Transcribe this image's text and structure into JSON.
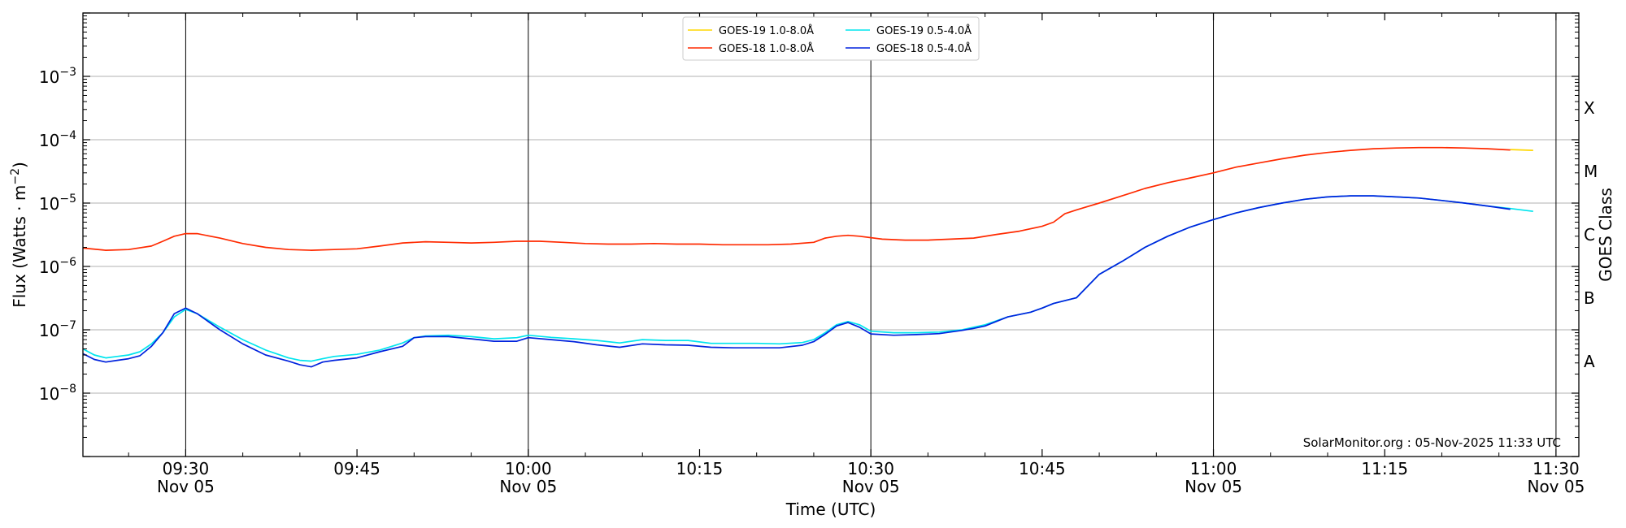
{
  "chart_data": {
    "type": "line",
    "xlabel": "Time (UTC)",
    "ylabel": "Flux (Watts · m",
    "ylabel_superscript": "−2",
    "ylabel_close": ")",
    "y2label": "GOES Class",
    "yscale": "log",
    "ylim": [
      1e-09,
      0.01
    ],
    "xlim": [
      "09:21",
      "11:32"
    ],
    "x_ticks": [
      {
        "t": "09:30",
        "line1": "09:30",
        "line2": "Nov 05"
      },
      {
        "t": "09:45",
        "line1": "09:45",
        "line2": ""
      },
      {
        "t": "10:00",
        "line1": "10:00",
        "line2": "Nov 05"
      },
      {
        "t": "10:15",
        "line1": "10:15",
        "line2": ""
      },
      {
        "t": "10:30",
        "line1": "10:30",
        "line2": "Nov 05"
      },
      {
        "t": "10:45",
        "line1": "10:45",
        "line2": ""
      },
      {
        "t": "11:00",
        "line1": "11:00",
        "line2": "Nov 05"
      },
      {
        "t": "11:15",
        "line1": "11:15",
        "line2": ""
      },
      {
        "t": "11:30",
        "line1": "11:30",
        "line2": "Nov 05"
      }
    ],
    "y_ticks": [
      {
        "value": 1e-08,
        "base": "10",
        "exp": "−8"
      },
      {
        "value": 1e-07,
        "base": "10",
        "exp": "−7"
      },
      {
        "value": 1e-06,
        "base": "10",
        "exp": "−6"
      },
      {
        "value": 1e-05,
        "base": "10",
        "exp": "−5"
      },
      {
        "value": 0.0001,
        "base": "10",
        "exp": "−4"
      },
      {
        "value": 0.001,
        "base": "10",
        "exp": "−3"
      }
    ],
    "class_labels": [
      {
        "label": "A",
        "value": 3.16e-08
      },
      {
        "label": "B",
        "value": 3.16e-07
      },
      {
        "label": "C",
        "value": 3.16e-06
      },
      {
        "label": "M",
        "value": 3.16e-05
      },
      {
        "label": "X",
        "value": 0.000316
      }
    ],
    "vertical_lines": [
      "09:30",
      "10:00",
      "10:30",
      "11:00",
      "11:30"
    ],
    "grid": "horizontal",
    "legend_position": "top-center",
    "credit": "SolarMonitor.org : 05-Nov-2025 11:33 UTC",
    "series": [
      {
        "name": "GOES-19 1.0-8.0Å",
        "color": "#ffd700",
        "x": [
          "11:26",
          "11:28"
        ],
        "y": [
          7e-05,
          6.8e-05
        ]
      },
      {
        "name": "GOES-18 1.0-8.0Å",
        "color": "#ff2a00",
        "x": [
          "09:21",
          "09:23",
          "09:25",
          "09:27",
          "09:28",
          "09:29",
          "09:30",
          "09:31",
          "09:33",
          "09:35",
          "09:37",
          "09:39",
          "09:41",
          "09:43",
          "09:45",
          "09:47",
          "09:49",
          "09:51",
          "09:53",
          "09:55",
          "09:57",
          "09:59",
          "10:01",
          "10:03",
          "10:05",
          "10:07",
          "10:09",
          "10:11",
          "10:13",
          "10:15",
          "10:17",
          "10:19",
          "10:21",
          "10:23",
          "10:25",
          "10:26",
          "10:27",
          "10:28",
          "10:29",
          "10:31",
          "10:33",
          "10:35",
          "10:37",
          "10:39",
          "10:41",
          "10:43",
          "10:45",
          "10:46",
          "10:47",
          "10:48",
          "10:50",
          "10:52",
          "10:54",
          "10:56",
          "10:58",
          "11:00",
          "11:02",
          "11:04",
          "11:06",
          "11:08",
          "11:10",
          "11:12",
          "11:14",
          "11:16",
          "11:18",
          "11:20",
          "11:22",
          "11:24",
          "11:26"
        ],
        "y": [
          1.95e-06,
          1.8e-06,
          1.85e-06,
          2.1e-06,
          2.5e-06,
          3e-06,
          3.3e-06,
          3.3e-06,
          2.8e-06,
          2.3e-06,
          2e-06,
          1.85e-06,
          1.8e-06,
          1.85e-06,
          1.9e-06,
          2.1e-06,
          2.35e-06,
          2.45e-06,
          2.4e-06,
          2.35e-06,
          2.4e-06,
          2.5e-06,
          2.5e-06,
          2.4e-06,
          2.3e-06,
          2.25e-06,
          2.25e-06,
          2.3e-06,
          2.25e-06,
          2.25e-06,
          2.2e-06,
          2.2e-06,
          2.2e-06,
          2.25e-06,
          2.4e-06,
          2.8e-06,
          3e-06,
          3.1e-06,
          3e-06,
          2.7e-06,
          2.6e-06,
          2.6e-06,
          2.7e-06,
          2.8e-06,
          3.2e-06,
          3.6e-06,
          4.3e-06,
          5e-06,
          6.8e-06,
          7.8e-06,
          1e-05,
          1.3e-05,
          1.7e-05,
          2.1e-05,
          2.5e-05,
          3e-05,
          3.7e-05,
          4.3e-05,
          5e-05,
          5.7e-05,
          6.3e-05,
          6.8e-05,
          7.2e-05,
          7.4e-05,
          7.5e-05,
          7.5e-05,
          7.4e-05,
          7.2e-05,
          6.9e-05
        ]
      },
      {
        "name": "GOES-19 0.5-4.0Å",
        "color": "#00e5ee",
        "x": [
          "09:21",
          "09:22",
          "09:23",
          "09:24",
          "09:25",
          "09:26",
          "09:27",
          "09:28",
          "09:29",
          "09:30",
          "09:31",
          "09:33",
          "09:35",
          "09:37",
          "09:39",
          "09:40",
          "09:41",
          "09:42",
          "09:43",
          "09:45",
          "09:47",
          "09:49",
          "09:50",
          "09:51",
          "09:53",
          "09:55",
          "09:57",
          "09:59",
          "10:00",
          "10:02",
          "10:04",
          "10:06",
          "10:08",
          "10:10",
          "10:12",
          "10:14",
          "10:16",
          "10:18",
          "10:20",
          "10:22",
          "10:24",
          "10:25",
          "10:26",
          "10:27",
          "10:28",
          "10:29",
          "10:30",
          "10:32",
          "10:34",
          "10:36",
          "10:38",
          "10:39",
          "10:40",
          "10:42",
          "10:44",
          "10:45",
          "10:46",
          "10:48",
          "10:50",
          "10:52",
          "10:54",
          "10:56",
          "10:58",
          "11:00",
          "11:02",
          "11:04",
          "11:06",
          "11:08",
          "11:10",
          "11:12",
          "11:14",
          "11:16",
          "11:18",
          "11:20",
          "11:22",
          "11:24",
          "11:26",
          "11:28"
        ],
        "y": [
          5e-08,
          4e-08,
          3.6e-08,
          3.8e-08,
          4e-08,
          4.5e-08,
          6e-08,
          9e-08,
          1.6e-07,
          2.1e-07,
          1.8e-07,
          1.1e-07,
          7e-08,
          4.8e-08,
          3.6e-08,
          3.3e-08,
          3.2e-08,
          3.5e-08,
          3.8e-08,
          4.1e-08,
          4.8e-08,
          6.2e-08,
          7.5e-08,
          8e-08,
          8.2e-08,
          7.8e-08,
          7.2e-08,
          7.5e-08,
          8.2e-08,
          7.6e-08,
          7.2e-08,
          6.8e-08,
          6.2e-08,
          7e-08,
          6.8e-08,
          6.8e-08,
          6.1e-08,
          6.1e-08,
          6.1e-08,
          6e-08,
          6.3e-08,
          7e-08,
          9e-08,
          1.2e-07,
          1.35e-07,
          1.2e-07,
          9.5e-08,
          9e-08,
          9e-08,
          9.2e-08,
          1e-07,
          1.1e-07,
          1.2e-07,
          1.6e-07,
          1.9e-07,
          2.2e-07,
          2.6e-07,
          3.2e-07,
          7.5e-07,
          1.2e-06,
          2e-06,
          3e-06,
          4.2e-06,
          5.5e-06,
          7e-06,
          8.5e-06,
          1e-05,
          1.15e-05,
          1.25e-05,
          1.3e-05,
          1.3e-05,
          1.25e-05,
          1.2e-05,
          1.1e-05,
          1e-05,
          9e-06,
          8.2e-06,
          7.4e-06
        ]
      },
      {
        "name": "GOES-18 0.5-4.0Å",
        "color": "#0022dd",
        "x": [
          "09:21",
          "09:22",
          "09:23",
          "09:24",
          "09:25",
          "09:26",
          "09:27",
          "09:28",
          "09:29",
          "09:30",
          "09:31",
          "09:33",
          "09:35",
          "09:37",
          "09:39",
          "09:40",
          "09:41",
          "09:42",
          "09:43",
          "09:45",
          "09:47",
          "09:49",
          "09:50",
          "09:51",
          "09:53",
          "09:55",
          "09:57",
          "09:59",
          "10:00",
          "10:02",
          "10:04",
          "10:06",
          "10:08",
          "10:10",
          "10:12",
          "10:14",
          "10:16",
          "10:18",
          "10:20",
          "10:22",
          "10:24",
          "10:25",
          "10:26",
          "10:27",
          "10:28",
          "10:29",
          "10:30",
          "10:32",
          "10:34",
          "10:36",
          "10:38",
          "10:39",
          "10:40",
          "10:42",
          "10:44",
          "10:45",
          "10:46",
          "10:48",
          "10:50",
          "10:52",
          "10:54",
          "10:56",
          "10:58",
          "11:00",
          "11:02",
          "11:04",
          "11:06",
          "11:08",
          "11:10",
          "11:12",
          "11:14",
          "11:16",
          "11:18",
          "11:20",
          "11:22",
          "11:24",
          "11:26"
        ],
        "y": [
          4.2e-08,
          3.4e-08,
          3.1e-08,
          3.3e-08,
          3.5e-08,
          3.9e-08,
          5.5e-08,
          9e-08,
          1.8e-07,
          2.2e-07,
          1.8e-07,
          1e-07,
          6e-08,
          4e-08,
          3.2e-08,
          2.8e-08,
          2.6e-08,
          3.1e-08,
          3.3e-08,
          3.6e-08,
          4.5e-08,
          5.5e-08,
          7.5e-08,
          7.8e-08,
          7.8e-08,
          7.2e-08,
          6.6e-08,
          6.6e-08,
          7.5e-08,
          7e-08,
          6.5e-08,
          5.8e-08,
          5.3e-08,
          6e-08,
          5.8e-08,
          5.7e-08,
          5.3e-08,
          5.2e-08,
          5.2e-08,
          5.2e-08,
          5.7e-08,
          6.5e-08,
          8.5e-08,
          1.15e-07,
          1.3e-07,
          1.1e-07,
          8.6e-08,
          8.2e-08,
          8.4e-08,
          8.7e-08,
          9.8e-08,
          1.05e-07,
          1.15e-07,
          1.6e-07,
          1.9e-07,
          2.2e-07,
          2.6e-07,
          3.2e-07,
          7.5e-07,
          1.2e-06,
          2e-06,
          3e-06,
          4.2e-06,
          5.5e-06,
          7e-06,
          8.5e-06,
          1e-05,
          1.15e-05,
          1.25e-05,
          1.3e-05,
          1.3e-05,
          1.25e-05,
          1.2e-05,
          1.1e-05,
          1e-05,
          9e-06,
          8e-06
        ]
      }
    ]
  }
}
